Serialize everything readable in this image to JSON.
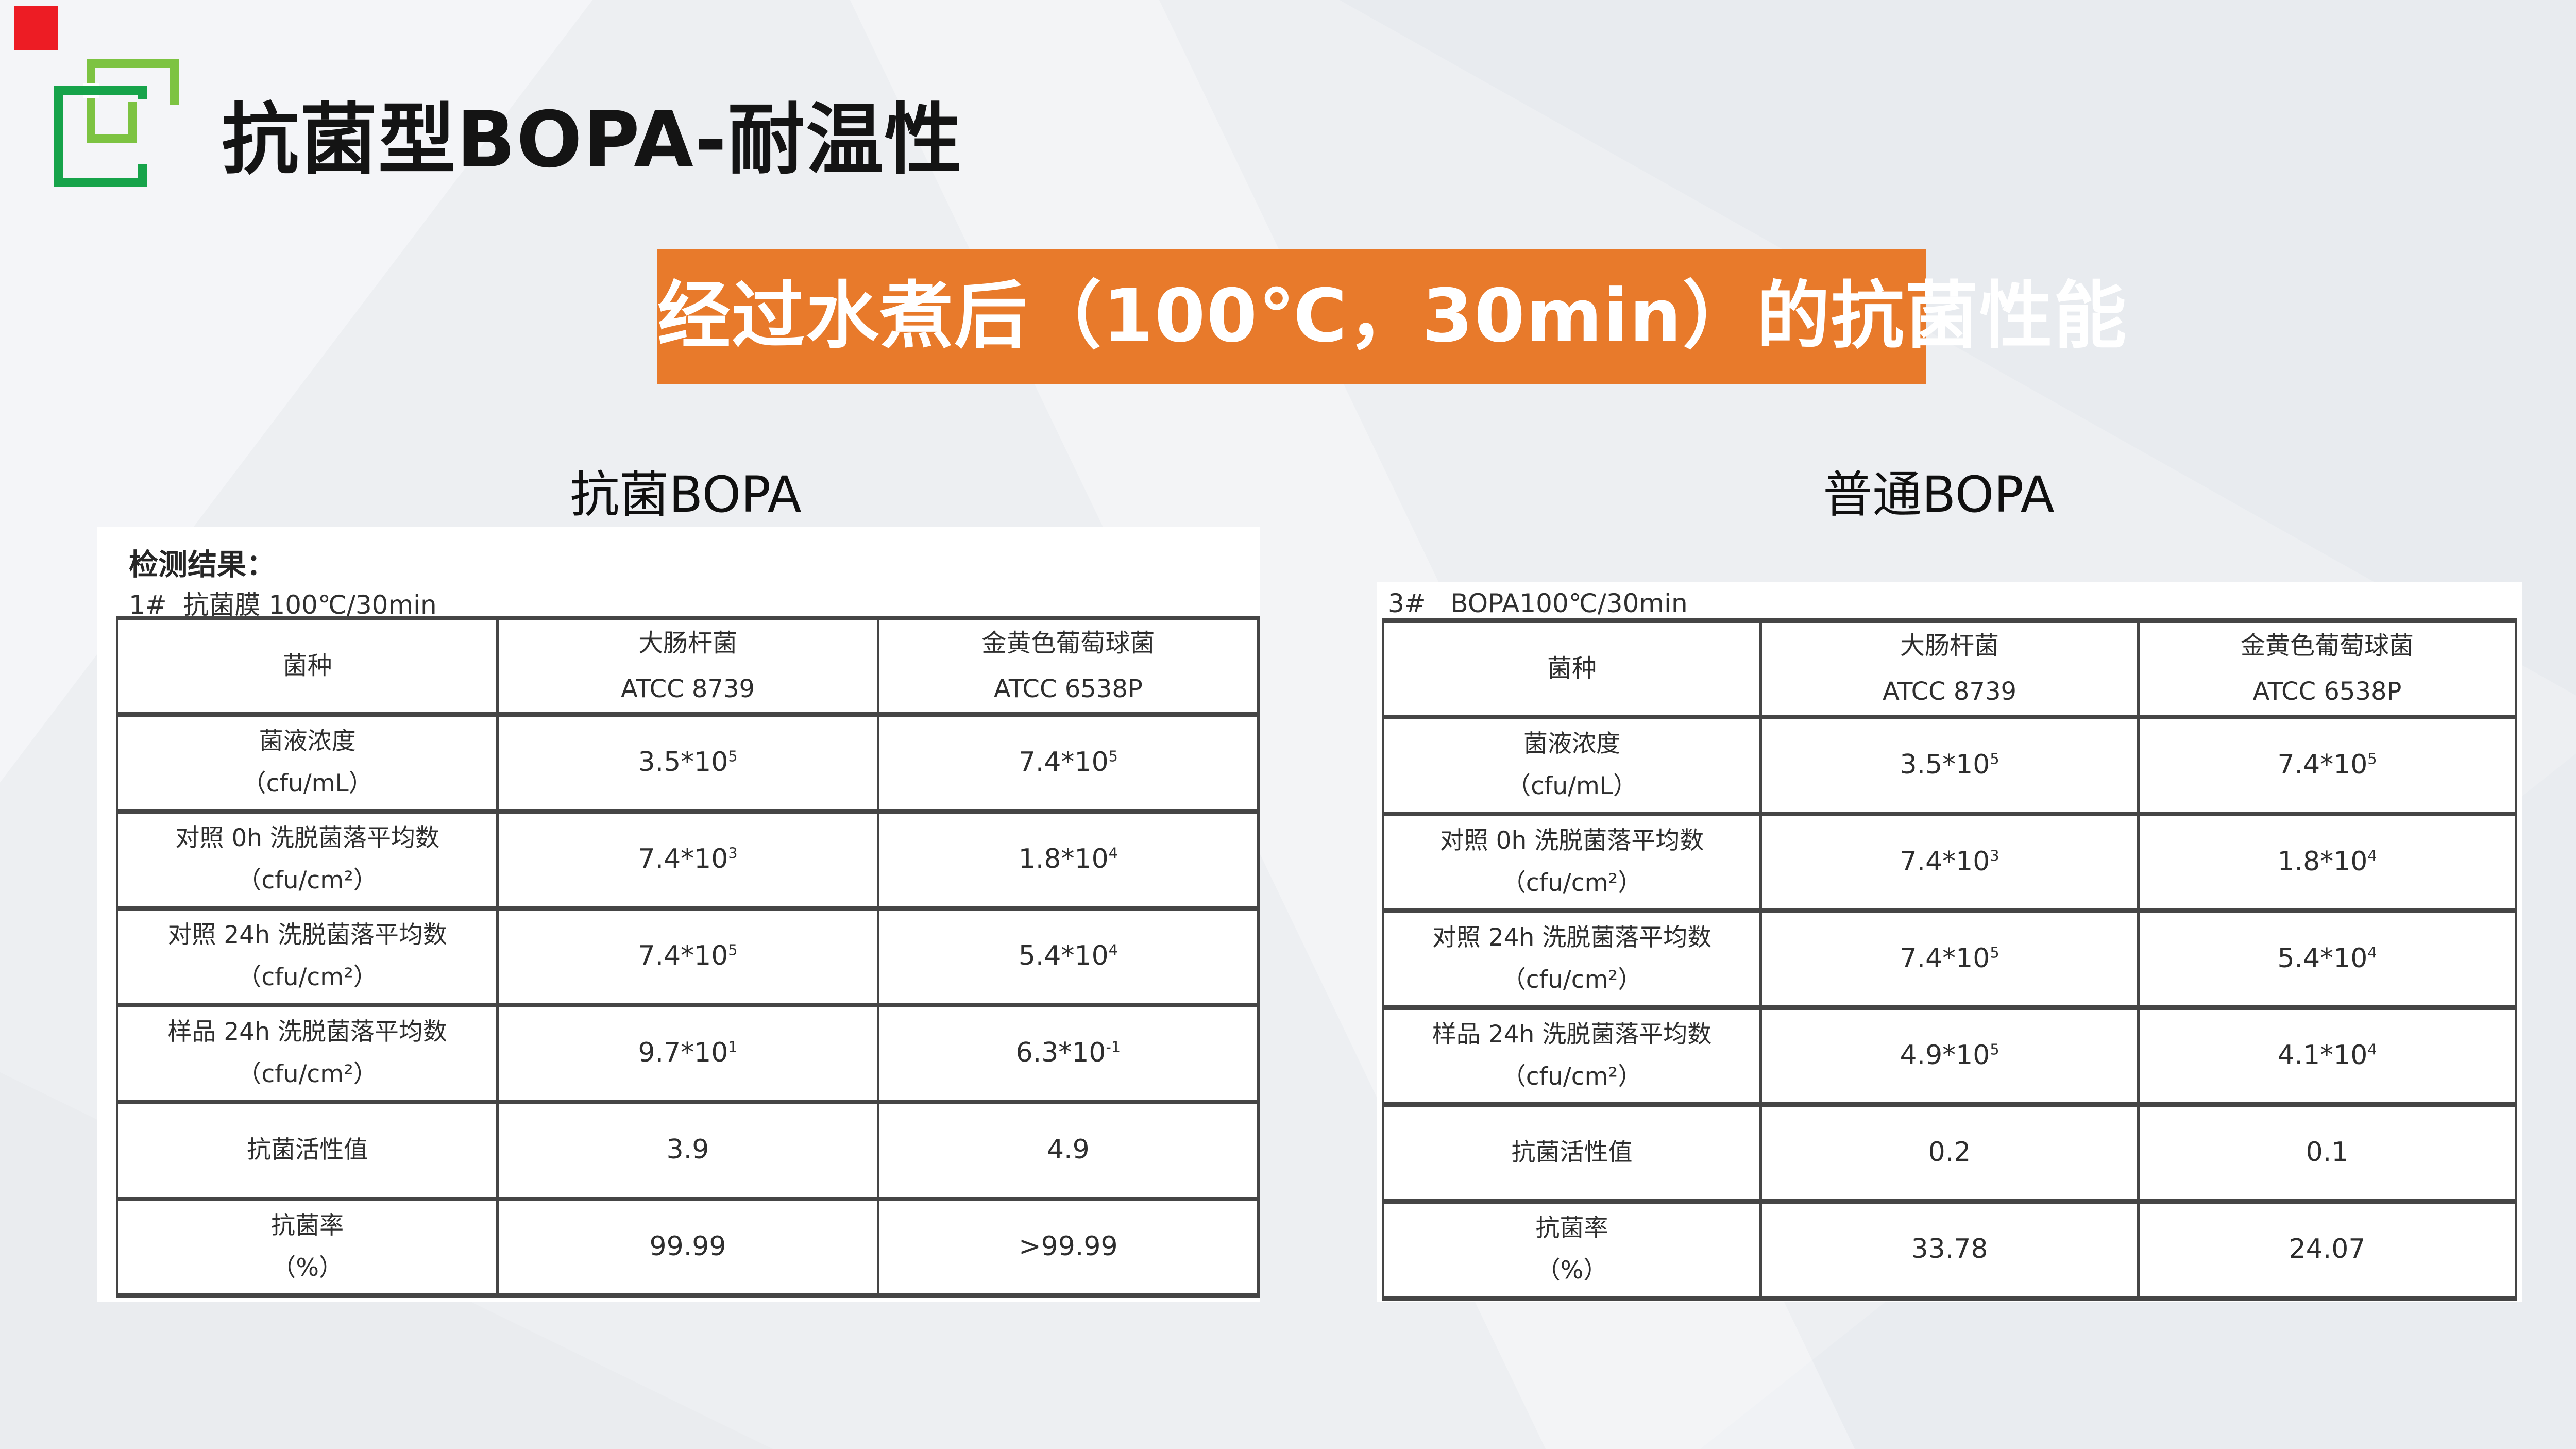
{
  "slide": {
    "title": "抗菌型BOPA-耐温性",
    "banner": "经过水煮后（100℃，30min）的抗菌性能",
    "left_label": "抗菌BOPA",
    "right_label": "普通BOPA"
  },
  "colors": {
    "banner_bg": "#E87A2B",
    "accent_red": "#ED1C24",
    "logo_light": "#7DC342",
    "logo_dark": "#16A34A",
    "table_line": "#454545"
  },
  "left_report": {
    "heading": "检测结果：",
    "subheading": "1#  抗菌膜 100℃/30min",
    "table": {
      "header": [
        "菌种",
        "大肠杆菌\nATCC 8739",
        "金黄色葡萄球菌\nATCC 6538P"
      ],
      "rows": [
        [
          "菌液浓度\n（cfu/mL）",
          "3.5*10^5",
          "7.4*10^5"
        ],
        [
          "对照 0h 洗脱菌落平均数\n（cfu/cm²）",
          "7.4*10^3",
          "1.8*10^4"
        ],
        [
          "对照 24h 洗脱菌落平均数\n（cfu/cm²）",
          "7.4*10^5",
          "5.4*10^4"
        ],
        [
          "样品 24h 洗脱菌落平均数\n（cfu/cm²）",
          "9.7*10^1",
          "6.3*10^-1"
        ],
        [
          "抗菌活性值",
          "3.9",
          "4.9"
        ],
        [
          "抗菌率\n（%）",
          "99.99",
          ">99.99"
        ]
      ]
    }
  },
  "right_report": {
    "heading": "3#   BOPA100℃/30min",
    "table": {
      "header": [
        "菌种",
        "大肠杆菌\nATCC 8739",
        "金黄色葡萄球菌\nATCC 6538P"
      ],
      "rows": [
        [
          "菌液浓度\n（cfu/mL）",
          "3.5*10^5",
          "7.4*10^5"
        ],
        [
          "对照 0h 洗脱菌落平均数\n（cfu/cm²）",
          "7.4*10^3",
          "1.8*10^4"
        ],
        [
          "对照 24h 洗脱菌落平均数\n（cfu/cm²）",
          "7.4*10^5",
          "5.4*10^4"
        ],
        [
          "样品 24h 洗脱菌落平均数\n（cfu/cm²）",
          "4.9*10^5",
          "4.1*10^4"
        ],
        [
          "抗菌活性值",
          "0.2",
          "0.1"
        ],
        [
          "抗菌率\n（%）",
          "33.78",
          "24.07"
        ]
      ]
    }
  }
}
